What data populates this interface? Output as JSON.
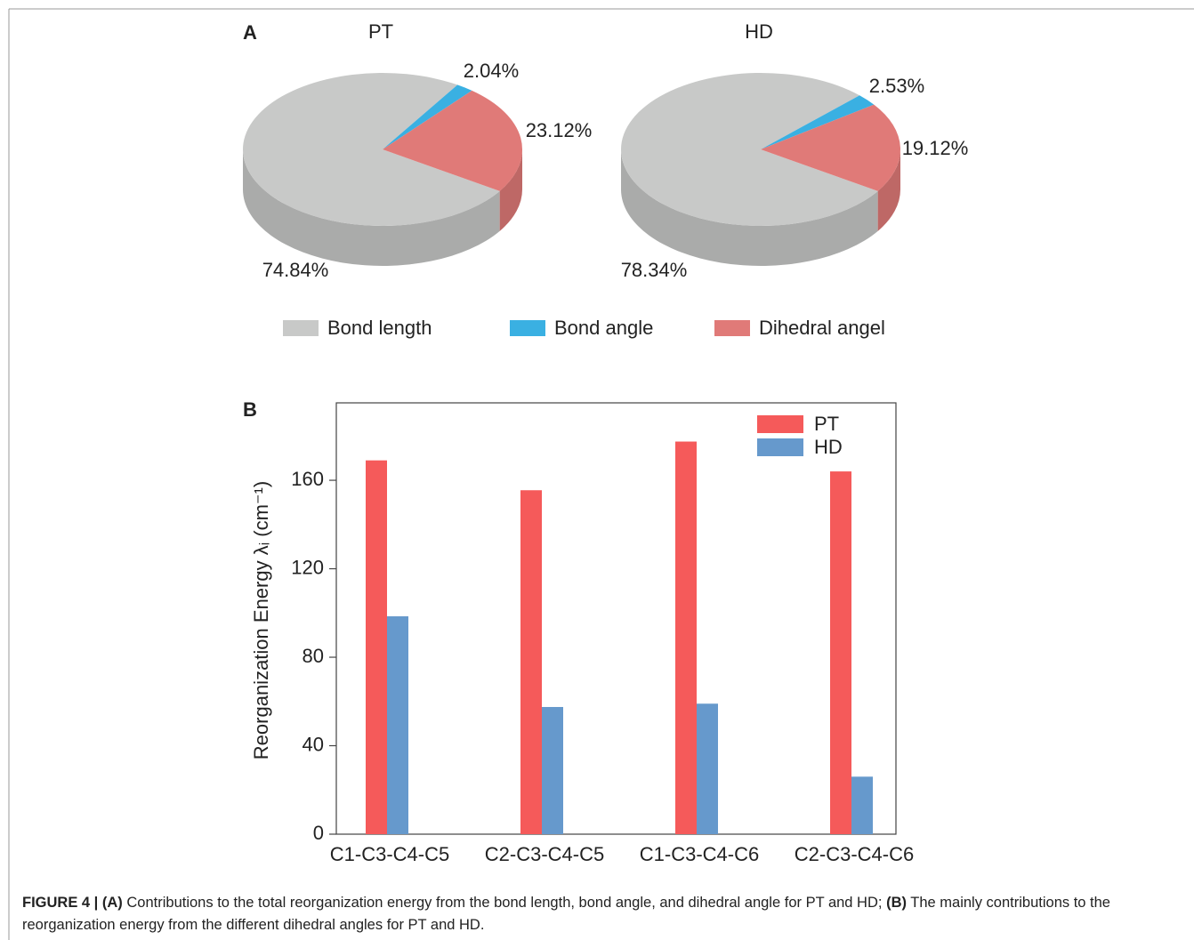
{
  "chart_data": [
    {
      "type": "pie",
      "panel": "A",
      "categories": [
        "Bond length",
        "Bond angle",
        "Dihedral angel"
      ],
      "colors": [
        "#c8c9c8",
        "#3ab0e2",
        "#e07a78"
      ],
      "series": [
        {
          "name": "PT",
          "values": [
            74.84,
            2.04,
            23.12
          ],
          "value_labels": [
            "74.84%",
            "2.04%",
            "23.12%"
          ]
        },
        {
          "name": "HD",
          "values": [
            78.34,
            2.53,
            19.12
          ],
          "value_labels": [
            "78.34%",
            "2.53%",
            "19.12%"
          ]
        }
      ]
    },
    {
      "type": "bar",
      "panel": "B",
      "categories": [
        "C1-C3-C4-C5",
        "C2-C3-C4-C5",
        "C1-C3-C4-C6",
        "C2-C3-C4-C6"
      ],
      "y_label": "Reorganization Energy λᵢ (cm⁻¹)",
      "series": [
        {
          "name": "PT",
          "color": "#f55a5a",
          "values": [
            169,
            155.5,
            177.5,
            164
          ]
        },
        {
          "name": "HD",
          "color": "#6699cc",
          "values": [
            98.5,
            57.5,
            59,
            26
          ]
        }
      ],
      "ylim": [
        0,
        195
      ],
      "yticks": [
        0,
        40,
        80,
        120,
        160
      ],
      "legend": "upper right"
    }
  ],
  "caption": {
    "figure": "FIGURE 4 |",
    "a_tag": "(A)",
    "a_text": "Contributions to the total reorganization energy from the bond length, bond angle, and dihedral angle for PT and HD;",
    "b_tag": "(B)",
    "b_text": "The mainly contributions to the reorganization energy from the different dihedral angles for PT and HD."
  }
}
